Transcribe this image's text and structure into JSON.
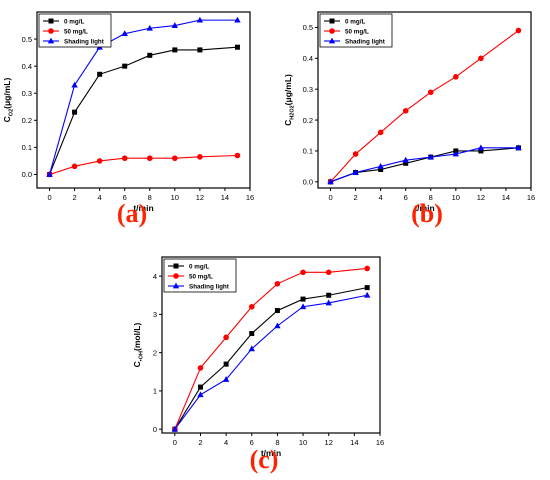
{
  "chart_data": [
    {
      "type": "line",
      "panel_label": "(a)",
      "xlabel": "t/min",
      "ylabel_main": "C",
      "ylabel_sub": "O2",
      "ylabel_unit": "(μg/mL)",
      "xlim": [
        -1,
        16
      ],
      "ylim": [
        -0.05,
        0.6
      ],
      "xticks": [
        0,
        2,
        4,
        6,
        8,
        10,
        12,
        14,
        16
      ],
      "yticks": [
        0.0,
        0.1,
        0.2,
        0.3,
        0.4,
        0.5
      ],
      "ytick_labels": [
        "0.0",
        "0.1",
        "0.2",
        "0.3",
        "0.4",
        "0.5"
      ],
      "legend_position": "top-left",
      "x": [
        0,
        2,
        4,
        6,
        8,
        10,
        12,
        15
      ],
      "series": [
        {
          "name": "0 mg/L",
          "color": "#000000",
          "marker": "square",
          "values": [
            0,
            0.23,
            0.37,
            0.4,
            0.44,
            0.46,
            0.46,
            0.47
          ]
        },
        {
          "name": "50 mg/L",
          "color": "#ff0000",
          "marker": "circle",
          "values": [
            0,
            0.03,
            0.05,
            0.06,
            0.06,
            0.06,
            0.065,
            0.07
          ]
        },
        {
          "name": "Shading light",
          "color": "#0000ff",
          "marker": "triangle",
          "values": [
            0,
            0.33,
            0.47,
            0.52,
            0.54,
            0.55,
            0.57,
            0.57
          ]
        }
      ]
    },
    {
      "type": "line",
      "panel_label": "(b)",
      "xlabel": "t/min",
      "ylabel_main": "C",
      "ylabel_sub": "H2O2",
      "ylabel_unit": "(μg/mL)",
      "xlim": [
        -1,
        16
      ],
      "ylim": [
        -0.02,
        0.55
      ],
      "xticks": [
        0,
        2,
        4,
        6,
        8,
        10,
        12,
        14,
        16
      ],
      "yticks": [
        0.0,
        0.1,
        0.2,
        0.3,
        0.4,
        0.5
      ],
      "ytick_labels": [
        "0.0",
        "0.1",
        "0.2",
        "0.3",
        "0.4",
        "0.5"
      ],
      "legend_position": "top-left",
      "x": [
        0,
        2,
        4,
        6,
        8,
        10,
        12,
        15
      ],
      "series": [
        {
          "name": "0 mg/L",
          "color": "#000000",
          "marker": "square",
          "values": [
            0,
            0.03,
            0.04,
            0.06,
            0.08,
            0.1,
            0.1,
            0.11
          ]
        },
        {
          "name": "50 mg/L",
          "color": "#ff0000",
          "marker": "circle",
          "values": [
            0,
            0.09,
            0.16,
            0.23,
            0.29,
            0.34,
            0.4,
            0.49
          ]
        },
        {
          "name": "Shading light",
          "color": "#0000ff",
          "marker": "triangle",
          "values": [
            0,
            0.03,
            0.05,
            0.07,
            0.08,
            0.09,
            0.11,
            0.11
          ]
        }
      ]
    },
    {
      "type": "line",
      "panel_label": "(c)",
      "xlabel": "t/min",
      "ylabel_main": "C",
      "ylabel_sub": "•OH",
      "ylabel_unit": "(mol/L)",
      "xlim": [
        -1,
        16
      ],
      "ylim": [
        -0.1,
        4.5
      ],
      "xticks": [
        0,
        2,
        4,
        6,
        8,
        10,
        12,
        14,
        16
      ],
      "yticks": [
        0,
        1,
        2,
        3,
        4
      ],
      "ytick_labels": [
        "0",
        "1",
        "2",
        "3",
        "4"
      ],
      "legend_position": "top-left",
      "x": [
        0,
        2,
        4,
        6,
        8,
        10,
        12,
        15
      ],
      "series": [
        {
          "name": "0 mg/L",
          "color": "#000000",
          "marker": "square",
          "values": [
            0,
            1.1,
            1.7,
            2.5,
            3.1,
            3.4,
            3.5,
            3.7
          ]
        },
        {
          "name": "50 mg/L",
          "color": "#ff0000",
          "marker": "circle",
          "values": [
            0,
            1.6,
            2.4,
            3.2,
            3.8,
            4.1,
            4.1,
            4.2
          ]
        },
        {
          "name": "Shading light",
          "color": "#0000ff",
          "marker": "triangle",
          "values": [
            0,
            0.9,
            1.3,
            2.1,
            2.7,
            3.2,
            3.3,
            3.5
          ]
        }
      ]
    }
  ]
}
